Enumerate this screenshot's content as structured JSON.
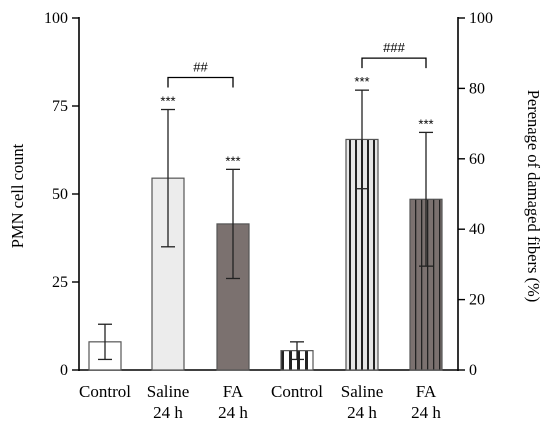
{
  "chart_data": {
    "type": "bar",
    "ylabel_left": "PMN cell count",
    "ylabel_right": "Perenage of damaged fibers (%)",
    "left_axis": {
      "ylim": [
        0,
        100
      ],
      "ticks": [
        "0",
        "25",
        "50",
        "75",
        "100"
      ]
    },
    "right_axis": {
      "ylim": [
        0,
        100
      ],
      "ticks": [
        "0",
        "20",
        "40",
        "60",
        "80",
        "100"
      ]
    },
    "grid": false,
    "groups": [
      {
        "axis": "left",
        "bars": [
          {
            "label_lines": [
              "Control"
            ],
            "value": 8,
            "error": 5,
            "significance": "",
            "pattern": "white"
          },
          {
            "label_lines": [
              "Saline",
              "24 h"
            ],
            "value": 54.5,
            "error": 19.5,
            "significance": "***",
            "pattern": "light-gray"
          },
          {
            "label_lines": [
              "FA",
              "24 h"
            ],
            "value": 41.5,
            "error": 15.5,
            "significance": "***",
            "pattern": "dark-gray"
          }
        ],
        "bracket": {
          "text": "##",
          "from_bar": 1,
          "to_bar": 2
        }
      },
      {
        "axis": "right",
        "bars": [
          {
            "label_lines": [
              "Control"
            ],
            "value": 5.5,
            "error": 2.5,
            "significance": "",
            "pattern": "white-stripes"
          },
          {
            "label_lines": [
              "Saline",
              "24 h"
            ],
            "value": 65.5,
            "error": 14,
            "significance": "***",
            "pattern": "gray-stripes"
          },
          {
            "label_lines": [
              "FA",
              "24 h"
            ],
            "value": 48.5,
            "error": 19,
            "significance": "***",
            "pattern": "dark-stripes"
          }
        ],
        "bracket": {
          "text": "###",
          "from_bar": 1,
          "to_bar": 2
        }
      }
    ],
    "colors": {
      "white": "#ffffff",
      "light_gray": "#ececec",
      "dark_gray": "#7b716f",
      "stripe_dark": "#222222",
      "stripe_light": "#e6e6e6",
      "stripe_gray": "#7b716f",
      "axis": "#000000",
      "bar_edge": "#555555"
    }
  }
}
